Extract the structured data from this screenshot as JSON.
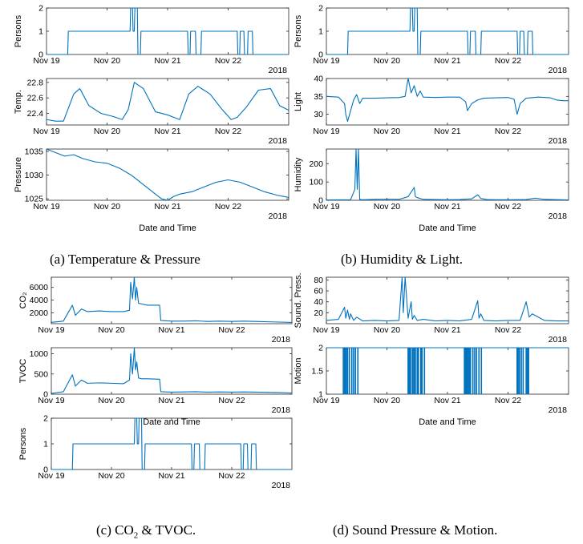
{
  "captions": {
    "a": "(a) Temperature & Pressure",
    "b": "(b) Humidity & Light.",
    "c_prefix": "(c) CO",
    "c_sub": "2",
    "c_suffix": " & TVOC.",
    "d": "(d) Sound Pressure & Motion."
  },
  "colors": {
    "line": "#0072BD",
    "axis": "#262626",
    "tick": "#262626"
  },
  "chart_data": [
    {
      "panel": "a",
      "type": "line",
      "ylabel": "Persons",
      "ylim": [
        0,
        2
      ],
      "yticks": [
        "0",
        "1",
        "2"
      ],
      "year": "2018",
      "xlabel": "",
      "xticks": [
        "Nov 19",
        "Nov 20",
        "Nov 21",
        "Nov 22"
      ],
      "x": [
        0.0,
        0.35,
        0.36,
        1.38,
        1.39,
        1.42,
        1.43,
        1.45,
        1.46,
        1.5,
        1.51,
        1.55,
        1.56,
        2.33,
        2.34,
        2.37,
        2.38,
        2.46,
        2.47,
        2.55,
        2.56,
        3.15,
        3.16,
        3.19,
        3.2,
        3.26,
        3.27,
        3.32,
        3.33,
        3.4,
        3.41,
        4.0
      ],
      "y": [
        0,
        0,
        1,
        1,
        2,
        2,
        1,
        1,
        2,
        2,
        0,
        0,
        1,
        1,
        0,
        0,
        1,
        1,
        0,
        0,
        1,
        1,
        0,
        0,
        1,
        1,
        0,
        0,
        1,
        1,
        0,
        0
      ]
    },
    {
      "panel": "a",
      "type": "line",
      "ylabel": "Temp.",
      "ylim": [
        22.25,
        22.85
      ],
      "yticks": [
        "22.4",
        "22.6",
        "22.8"
      ],
      "year": "2018",
      "xlabel": "",
      "xticks": [
        "Nov 19",
        "Nov 20",
        "Nov 21",
        "Nov 22"
      ],
      "x": [
        0.0,
        0.15,
        0.28,
        0.45,
        0.55,
        0.7,
        0.9,
        1.1,
        1.25,
        1.35,
        1.45,
        1.6,
        1.8,
        2.0,
        2.1,
        2.2,
        2.35,
        2.5,
        2.7,
        2.9,
        3.05,
        3.15,
        3.3,
        3.5,
        3.7,
        3.85,
        4.0
      ],
      "y": [
        22.32,
        22.3,
        22.3,
        22.65,
        22.72,
        22.5,
        22.4,
        22.36,
        22.32,
        22.45,
        22.8,
        22.72,
        22.42,
        22.38,
        22.35,
        22.32,
        22.65,
        22.75,
        22.65,
        22.45,
        22.32,
        22.35,
        22.48,
        22.7,
        22.72,
        22.5,
        22.44
      ]
    },
    {
      "panel": "a",
      "type": "line",
      "ylabel": "Pressure",
      "ylim": [
        1024.7,
        1035.5
      ],
      "yticks": [
        "1025",
        "1030",
        "1035"
      ],
      "year": "2018",
      "xlabel": "Date and Time",
      "xticks": [
        "Nov 19",
        "Nov 20",
        "Nov 21",
        "Nov 22"
      ],
      "x": [
        0.0,
        0.1,
        0.3,
        0.45,
        0.6,
        0.8,
        1.0,
        1.2,
        1.4,
        1.6,
        1.8,
        1.9,
        2.0,
        2.1,
        2.2,
        2.4,
        2.6,
        2.8,
        3.0,
        3.2,
        3.4,
        3.6,
        3.8,
        4.0
      ],
      "y": [
        1035.5,
        1035,
        1034,
        1034.3,
        1033.5,
        1032.8,
        1032.5,
        1031.5,
        1030,
        1028,
        1026,
        1025,
        1024.7,
        1025.5,
        1026,
        1026.5,
        1027.5,
        1028.5,
        1029,
        1028.5,
        1027.5,
        1026.5,
        1025.8,
        1025.3
      ]
    },
    {
      "panel": "b",
      "type": "line",
      "ylabel": "Persons",
      "ylim": [
        0,
        2
      ],
      "yticks": [
        "0",
        "1",
        "2"
      ],
      "year": "2018",
      "xlabel": "",
      "xticks": [
        "Nov 19",
        "Nov 20",
        "Nov 21",
        "Nov 22"
      ],
      "x": [
        0.0,
        0.35,
        0.36,
        1.38,
        1.39,
        1.42,
        1.43,
        1.45,
        1.46,
        1.5,
        1.51,
        1.55,
        1.56,
        2.33,
        2.34,
        2.37,
        2.38,
        2.46,
        2.47,
        2.55,
        2.56,
        3.15,
        3.16,
        3.19,
        3.2,
        3.26,
        3.27,
        3.32,
        3.33,
        3.4,
        3.41,
        4.0
      ],
      "y": [
        0,
        0,
        1,
        1,
        2,
        2,
        1,
        1,
        2,
        2,
        0,
        0,
        1,
        1,
        0,
        0,
        1,
        1,
        0,
        0,
        1,
        1,
        0,
        0,
        1,
        1,
        0,
        0,
        1,
        1,
        0,
        0
      ]
    },
    {
      "panel": "b",
      "type": "line",
      "ylabel": "Light",
      "ylim": [
        27,
        40
      ],
      "yticks": [
        "30",
        "35",
        "40"
      ],
      "year": "2018",
      "xlabel": "",
      "xticks": [
        "Nov 19",
        "Nov 20",
        "Nov 21",
        "Nov 22"
      ],
      "x": [
        0.0,
        0.2,
        0.3,
        0.32,
        0.35,
        0.45,
        0.5,
        0.55,
        0.6,
        0.8,
        1.0,
        1.2,
        1.3,
        1.35,
        1.4,
        1.45,
        1.5,
        1.55,
        1.6,
        1.8,
        2.0,
        2.2,
        2.3,
        2.33,
        2.4,
        2.5,
        2.6,
        2.8,
        3.0,
        3.1,
        3.15,
        3.2,
        3.3,
        3.5,
        3.7,
        3.8,
        3.9,
        4.0
      ],
      "y": [
        35,
        34.8,
        33,
        30,
        28,
        34,
        35.5,
        33,
        34.5,
        34.5,
        34.6,
        34.7,
        35,
        40,
        36,
        38,
        35,
        36.5,
        34.8,
        34.7,
        34.8,
        34.8,
        33.5,
        31,
        33,
        34,
        34.5,
        34.6,
        34.7,
        34.2,
        30,
        33,
        34.5,
        34.8,
        34.6,
        34,
        33.8,
        33.8
      ]
    },
    {
      "panel": "b",
      "type": "line",
      "ylabel": "Humidity",
      "ylim": [
        0,
        280
      ],
      "yticks": [
        "0",
        "100",
        "200"
      ],
      "year": "2018",
      "xlabel": "Date and Time",
      "xticks": [
        "Nov 19",
        "Nov 20",
        "Nov 21",
        "Nov 22"
      ],
      "x": [
        0.0,
        0.4,
        0.47,
        0.49,
        0.51,
        0.53,
        0.55,
        0.6,
        0.8,
        1.0,
        1.2,
        1.35,
        1.45,
        1.47,
        1.5,
        1.6,
        1.8,
        2.0,
        2.2,
        2.4,
        2.5,
        2.55,
        2.65,
        2.8,
        3.0,
        3.3,
        3.45,
        3.6,
        4.0
      ],
      "y": [
        2,
        3,
        60,
        280,
        60,
        280,
        5,
        3,
        5,
        6,
        5,
        20,
        70,
        20,
        15,
        5,
        4,
        3,
        4,
        8,
        30,
        10,
        4,
        3,
        3,
        4,
        12,
        5,
        2
      ]
    },
    {
      "panel": "c",
      "type": "line",
      "ylabel": "CO₂",
      "ylim": [
        300,
        7600
      ],
      "yticks": [
        "2000",
        "4000",
        "6000"
      ],
      "year": "2018",
      "xlabel": "",
      "xticks": [
        "Nov 19",
        "Nov 20",
        "Nov 21",
        "Nov 22"
      ],
      "x": [
        0.0,
        0.2,
        0.35,
        0.4,
        0.5,
        0.6,
        0.8,
        1.0,
        1.2,
        1.3,
        1.32,
        1.35,
        1.38,
        1.4,
        1.42,
        1.45,
        1.5,
        1.6,
        1.8,
        1.82,
        2.0,
        2.2,
        2.4,
        2.6,
        2.8,
        3.0,
        3.2,
        3.4,
        3.6,
        3.8,
        4.0
      ],
      "y": [
        500,
        700,
        3200,
        1600,
        2600,
        2200,
        2300,
        2200,
        2200,
        2400,
        6800,
        4200,
        7600,
        4000,
        6000,
        3500,
        3400,
        3200,
        3200,
        800,
        700,
        700,
        750,
        650,
        700,
        650,
        700,
        650,
        600,
        550,
        500
      ]
    },
    {
      "panel": "c",
      "type": "line",
      "ylabel": "TVOC",
      "ylim": [
        0,
        1150
      ],
      "yticks": [
        "0",
        "500",
        "1000"
      ],
      "year": "2018",
      "xlabel": "Date and Time",
      "xticks": [
        "Nov 19",
        "Nov 20",
        "Nov 21",
        "Nov 22"
      ],
      "x": [
        0.0,
        0.2,
        0.35,
        0.4,
        0.5,
        0.6,
        0.8,
        1.0,
        1.2,
        1.3,
        1.32,
        1.35,
        1.38,
        1.4,
        1.42,
        1.45,
        1.5,
        1.6,
        1.8,
        1.82,
        2.0,
        2.2,
        2.4,
        2.6,
        2.8,
        3.0,
        3.2,
        3.4,
        3.6,
        3.8,
        4.0
      ],
      "y": [
        20,
        60,
        480,
        200,
        350,
        270,
        280,
        270,
        260,
        350,
        1000,
        500,
        1150,
        600,
        800,
        400,
        380,
        380,
        370,
        60,
        50,
        55,
        60,
        50,
        55,
        50,
        55,
        50,
        45,
        40,
        30
      ]
    },
    {
      "panel": "d",
      "type": "line",
      "ylabel": "Persons",
      "ylim": [
        0,
        2
      ],
      "yticks": [
        "0",
        "1",
        "2"
      ],
      "year": "2018",
      "xlabel": "",
      "xticks": [
        "Nov 19",
        "Nov 20",
        "Nov 21",
        "Nov 22"
      ],
      "x": [
        0.0,
        0.35,
        0.36,
        1.38,
        1.39,
        1.42,
        1.43,
        1.45,
        1.46,
        1.5,
        1.51,
        1.55,
        1.56,
        2.33,
        2.34,
        2.37,
        2.38,
        2.46,
        2.47,
        2.55,
        2.56,
        3.15,
        3.16,
        3.19,
        3.2,
        3.26,
        3.27,
        3.32,
        3.33,
        3.4,
        3.41,
        4.0
      ],
      "y": [
        0,
        0,
        1,
        1,
        2,
        2,
        1,
        1,
        2,
        2,
        0,
        0,
        1,
        1,
        0,
        0,
        1,
        1,
        0,
        0,
        1,
        1,
        0,
        0,
        1,
        1,
        0,
        0,
        1,
        1,
        0,
        0
      ]
    },
    {
      "panel": "d",
      "type": "line",
      "ylabel": "Sound. Press.",
      "ylim": [
        0,
        85
      ],
      "yticks": [
        "20",
        "40",
        "60",
        "80"
      ],
      "year": "2018",
      "xlabel": "",
      "xticks": [
        "Nov 19",
        "Nov 20",
        "Nov 21",
        "Nov 22"
      ],
      "x": [
        0.0,
        0.2,
        0.3,
        0.32,
        0.35,
        0.38,
        0.4,
        0.45,
        0.5,
        0.6,
        0.8,
        1.0,
        1.2,
        1.25,
        1.27,
        1.3,
        1.35,
        1.4,
        1.42,
        1.45,
        1.5,
        1.6,
        1.8,
        2.0,
        2.2,
        2.4,
        2.5,
        2.52,
        2.55,
        2.6,
        2.8,
        3.0,
        3.2,
        3.3,
        3.35,
        3.4,
        3.6,
        3.8,
        4.0
      ],
      "y": [
        6,
        8,
        30,
        10,
        25,
        8,
        18,
        6,
        12,
        5,
        6,
        5,
        6,
        85,
        20,
        85,
        10,
        40,
        8,
        15,
        6,
        8,
        5,
        6,
        5,
        8,
        42,
        10,
        18,
        6,
        5,
        6,
        6,
        40,
        12,
        18,
        6,
        5,
        5
      ]
    },
    {
      "panel": "d",
      "type": "line",
      "ylabel": "Motion",
      "ylim": [
        1,
        2
      ],
      "yticks": [
        "1",
        "1.5",
        "2"
      ],
      "year": "2018",
      "xlabel": "Date and Time",
      "xticks": [
        "Nov 19",
        "Nov 20",
        "Nov 21",
        "Nov 22"
      ],
      "x": [],
      "y": [],
      "motion_events": [
        0.28,
        0.3,
        0.31,
        0.33,
        0.35,
        0.38,
        0.42,
        0.45,
        0.48,
        0.52,
        1.35,
        1.36,
        1.38,
        1.39,
        1.42,
        1.43,
        1.45,
        1.47,
        1.5,
        1.52,
        1.56,
        1.58,
        1.62,
        2.28,
        2.29,
        2.3,
        2.31,
        2.32,
        2.34,
        2.36,
        2.38,
        2.42,
        2.45,
        2.48,
        2.52,
        2.56,
        3.15,
        3.16,
        3.18,
        3.19,
        3.22,
        3.25,
        3.3,
        3.32,
        3.34
      ]
    }
  ]
}
